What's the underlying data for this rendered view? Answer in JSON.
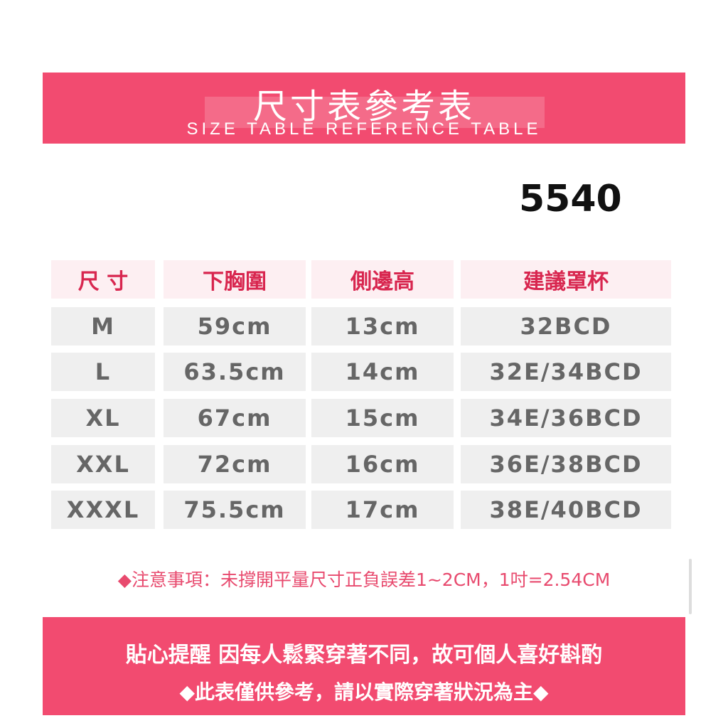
{
  "header": {
    "title": "尺寸表參考表",
    "subtitle": "SIZE TABLE REFERENCE TABLE"
  },
  "product_code": "5540",
  "table": {
    "columns": [
      "尺 寸",
      "下胸圍",
      "側邊高",
      "建議罩杯"
    ],
    "rows": [
      [
        "M",
        "59cm",
        "13cm",
        "32BCD"
      ],
      [
        "L",
        "63.5cm",
        "14cm",
        "32E/34BCD"
      ],
      [
        "XL",
        "67cm",
        "15cm",
        "34E/36BCD"
      ],
      [
        "XXL",
        "72cm",
        "16cm",
        "36E/38BCD"
      ],
      [
        "XXXL",
        "75.5cm",
        "17cm",
        "38E/40BCD"
      ]
    ]
  },
  "note": "◆注意事項：未撐開平量尺寸正負誤差1~2CM，1吋=2.54CM",
  "footer": {
    "line1": "貼心提醒 因每人鬆緊穿著不同，故可個人喜好斟酌",
    "line2": "◆此表僅供參考，請以實際穿著狀況為主◆"
  },
  "colors": {
    "brand": "#f24b70",
    "header_text": "#d8264f",
    "cell_bg": "#efefef"
  }
}
